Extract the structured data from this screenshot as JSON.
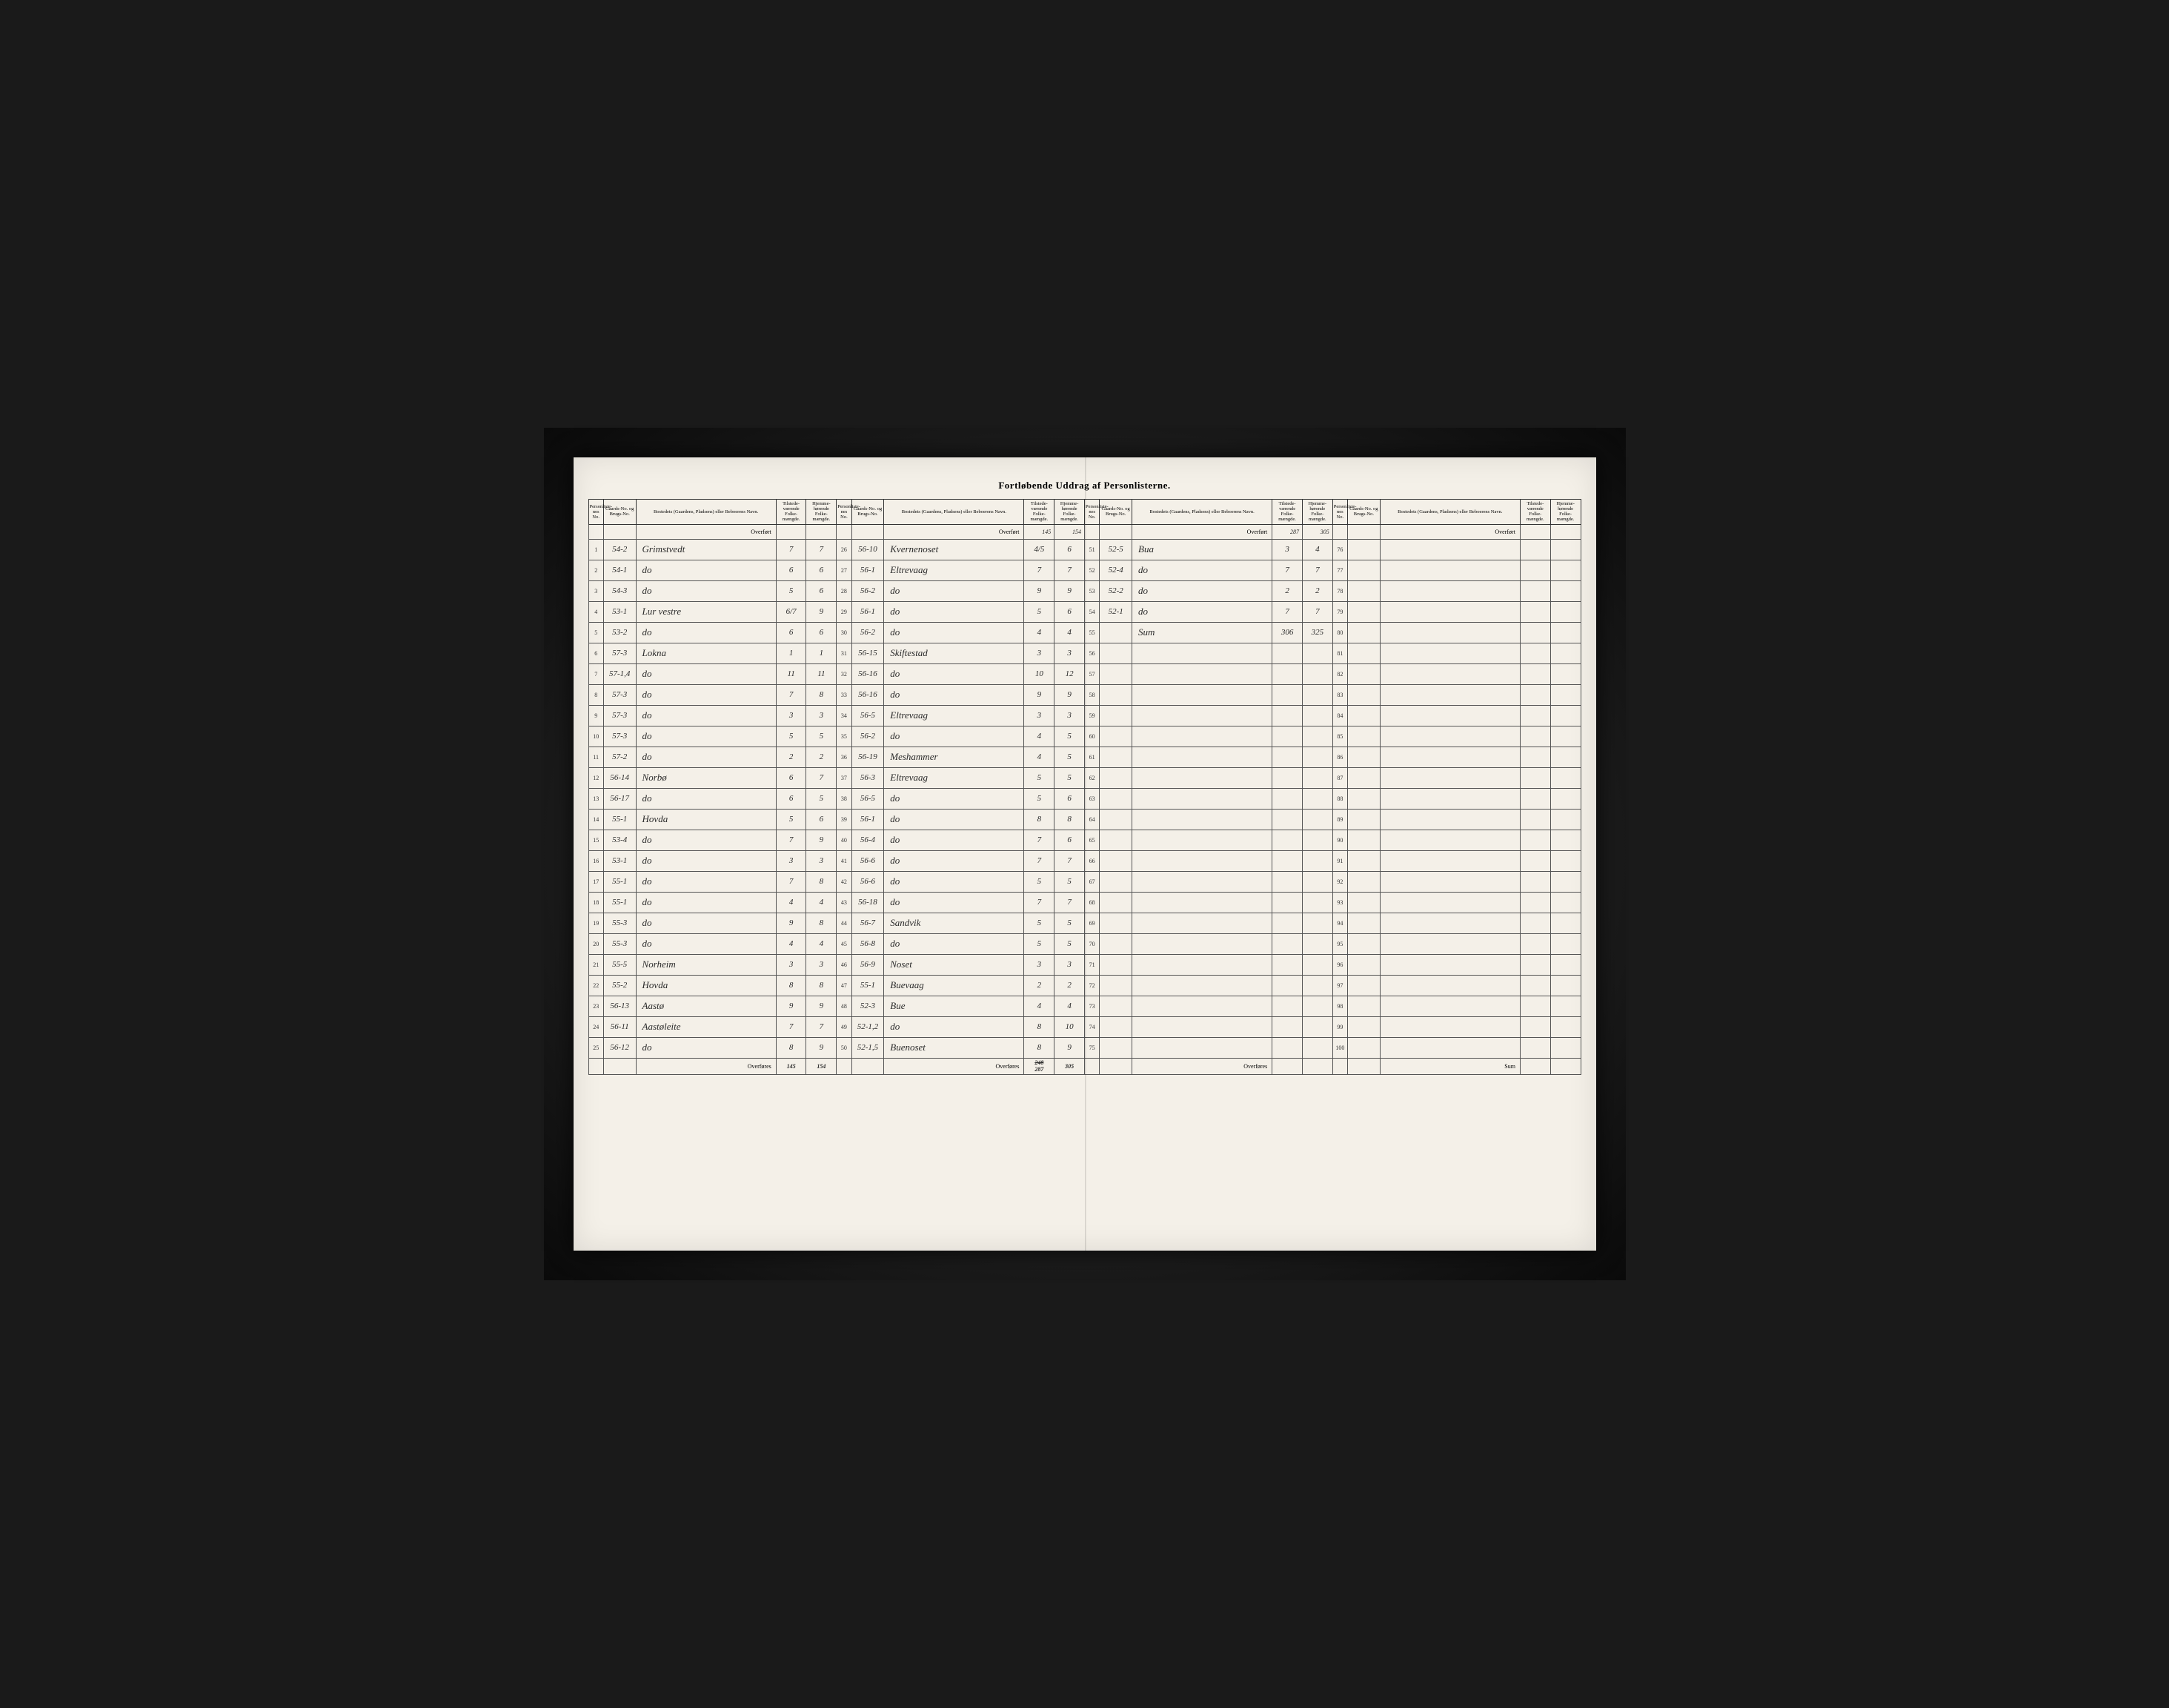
{
  "title": "Fortløbende Uddrag af Personlisterne.",
  "headers": {
    "idx": "Personliste-nes No.",
    "gno": "Gaards-No. og Brugs-No.",
    "name": "Bostedets (Gaardens, Pladsens) eller Beboerens Navn.",
    "present": "Tilstede-værende Folke-mængde.",
    "home": "Hjemme-hørende Folke-mængde."
  },
  "labels": {
    "overfort": "Overført",
    "overfores": "Overføres",
    "sum": "Sum"
  },
  "carry": {
    "g2_present": "145",
    "g2_home": "154",
    "g3_present": "287",
    "g3_home": "305"
  },
  "footer": {
    "g1_present": "145",
    "g1_home": "154",
    "g2_present": "248",
    "g2_home": "305",
    "g2_present_corr": "287"
  },
  "group1": [
    {
      "i": "1",
      "g": "54-2",
      "n": "Grimstvedt",
      "p": "7",
      "h": "7"
    },
    {
      "i": "2",
      "g": "54-1",
      "n": "do",
      "p": "6",
      "h": "6"
    },
    {
      "i": "3",
      "g": "54-3",
      "n": "do",
      "p": "5",
      "h": "6"
    },
    {
      "i": "4",
      "g": "53-1",
      "n": "Lur vestre",
      "p": "6/7",
      "h": "9"
    },
    {
      "i": "5",
      "g": "53-2",
      "n": "do",
      "p": "6",
      "h": "6"
    },
    {
      "i": "6",
      "g": "57-3",
      "n": "Lokna",
      "p": "1",
      "h": "1"
    },
    {
      "i": "7",
      "g": "57-1,4",
      "n": "do",
      "p": "11",
      "h": "11"
    },
    {
      "i": "8",
      "g": "57-3",
      "n": "do",
      "p": "7",
      "h": "8"
    },
    {
      "i": "9",
      "g": "57-3",
      "n": "do",
      "p": "3",
      "h": "3"
    },
    {
      "i": "10",
      "g": "57-3",
      "n": "do",
      "p": "5",
      "h": "5"
    },
    {
      "i": "11",
      "g": "57-2",
      "n": "do",
      "p": "2",
      "h": "2"
    },
    {
      "i": "12",
      "g": "56-14",
      "n": "Norbø",
      "p": "6",
      "h": "7"
    },
    {
      "i": "13",
      "g": "56-17",
      "n": "do",
      "p": "6",
      "h": "5"
    },
    {
      "i": "14",
      "g": "55-1",
      "n": "Hovda",
      "p": "5",
      "h": "6"
    },
    {
      "i": "15",
      "g": "53-4",
      "n": "do",
      "p": "7",
      "h": "9"
    },
    {
      "i": "16",
      "g": "53-1",
      "n": "do",
      "p": "3",
      "h": "3"
    },
    {
      "i": "17",
      "g": "55-1",
      "n": "do",
      "p": "7",
      "h": "8"
    },
    {
      "i": "18",
      "g": "55-1",
      "n": "do",
      "p": "4",
      "h": "4"
    },
    {
      "i": "19",
      "g": "55-3",
      "n": "do",
      "p": "9",
      "h": "8"
    },
    {
      "i": "20",
      "g": "55-3",
      "n": "do",
      "p": "4",
      "h": "4"
    },
    {
      "i": "21",
      "g": "55-5",
      "n": "Norheim",
      "p": "3",
      "h": "3"
    },
    {
      "i": "22",
      "g": "55-2",
      "n": "Hovda",
      "p": "8",
      "h": "8"
    },
    {
      "i": "23",
      "g": "56-13",
      "n": "Aastø",
      "p": "9",
      "h": "9"
    },
    {
      "i": "24",
      "g": "56-11",
      "n": "Aastøleite",
      "p": "7",
      "h": "7"
    },
    {
      "i": "25",
      "g": "56-12",
      "n": "do",
      "p": "8",
      "h": "9"
    }
  ],
  "group2": [
    {
      "i": "26",
      "g": "56-10",
      "n": "Kvernenoset",
      "p": "4/5",
      "h": "6"
    },
    {
      "i": "27",
      "g": "56-1",
      "n": "Eltrevaag",
      "p": "7",
      "h": "7"
    },
    {
      "i": "28",
      "g": "56-2",
      "n": "do",
      "p": "9",
      "h": "9"
    },
    {
      "i": "29",
      "g": "56-1",
      "n": "do",
      "p": "5",
      "h": "6"
    },
    {
      "i": "30",
      "g": "56-2",
      "n": "do",
      "p": "4",
      "h": "4"
    },
    {
      "i": "31",
      "g": "56-15",
      "n": "Skiftestad",
      "p": "3",
      "h": "3"
    },
    {
      "i": "32",
      "g": "56-16",
      "n": "do",
      "p": "10",
      "h": "12"
    },
    {
      "i": "33",
      "g": "56-16",
      "n": "do",
      "p": "9",
      "h": "9"
    },
    {
      "i": "34",
      "g": "56-5",
      "n": "Eltrevaag",
      "p": "3",
      "h": "3"
    },
    {
      "i": "35",
      "g": "56-2",
      "n": "do",
      "p": "4",
      "h": "5"
    },
    {
      "i": "36",
      "g": "56-19",
      "n": "Meshammer",
      "p": "4",
      "h": "5"
    },
    {
      "i": "37",
      "g": "56-3",
      "n": "Eltrevaag",
      "p": "5",
      "h": "5"
    },
    {
      "i": "38",
      "g": "56-5",
      "n": "do",
      "p": "5",
      "h": "6"
    },
    {
      "i": "39",
      "g": "56-1",
      "n": "do",
      "p": "8",
      "h": "8"
    },
    {
      "i": "40",
      "g": "56-4",
      "n": "do",
      "p": "7",
      "h": "6"
    },
    {
      "i": "41",
      "g": "56-6",
      "n": "do",
      "p": "7",
      "h": "7"
    },
    {
      "i": "42",
      "g": "56-6",
      "n": "do",
      "p": "5",
      "h": "5"
    },
    {
      "i": "43",
      "g": "56-18",
      "n": "do",
      "p": "7",
      "h": "7"
    },
    {
      "i": "44",
      "g": "56-7",
      "n": "Sandvik",
      "p": "5",
      "h": "5"
    },
    {
      "i": "45",
      "g": "56-8",
      "n": "do",
      "p": "5",
      "h": "5"
    },
    {
      "i": "46",
      "g": "56-9",
      "n": "Noset",
      "p": "3",
      "h": "3"
    },
    {
      "i": "47",
      "g": "55-1",
      "n": "Buevaag",
      "p": "2",
      "h": "2"
    },
    {
      "i": "48",
      "g": "52-3",
      "n": "Bue",
      "p": "4",
      "h": "4"
    },
    {
      "i": "49",
      "g": "52-1,2",
      "n": "do",
      "p": "8",
      "h": "10"
    },
    {
      "i": "50",
      "g": "52-1,5",
      "n": "Buenoset",
      "p": "8",
      "h": "9"
    }
  ],
  "group3": [
    {
      "i": "51",
      "g": "52-5",
      "n": "Bua",
      "p": "3",
      "h": "4"
    },
    {
      "i": "52",
      "g": "52-4",
      "n": "do",
      "p": "7",
      "h": "7"
    },
    {
      "i": "53",
      "g": "52-2",
      "n": "do",
      "p": "2",
      "h": "2"
    },
    {
      "i": "54",
      "g": "52-1",
      "n": "do",
      "p": "7",
      "h": "7"
    },
    {
      "i": "55",
      "g": "",
      "n": "Sum",
      "p": "306",
      "h": "325"
    },
    {
      "i": "56",
      "g": "",
      "n": "",
      "p": "",
      "h": ""
    },
    {
      "i": "57",
      "g": "",
      "n": "",
      "p": "",
      "h": ""
    },
    {
      "i": "58",
      "g": "",
      "n": "",
      "p": "",
      "h": ""
    },
    {
      "i": "59",
      "g": "",
      "n": "",
      "p": "",
      "h": ""
    },
    {
      "i": "60",
      "g": "",
      "n": "",
      "p": "",
      "h": ""
    },
    {
      "i": "61",
      "g": "",
      "n": "",
      "p": "",
      "h": ""
    },
    {
      "i": "62",
      "g": "",
      "n": "",
      "p": "",
      "h": ""
    },
    {
      "i": "63",
      "g": "",
      "n": "",
      "p": "",
      "h": ""
    },
    {
      "i": "64",
      "g": "",
      "n": "",
      "p": "",
      "h": ""
    },
    {
      "i": "65",
      "g": "",
      "n": "",
      "p": "",
      "h": ""
    },
    {
      "i": "66",
      "g": "",
      "n": "",
      "p": "",
      "h": ""
    },
    {
      "i": "67",
      "g": "",
      "n": "",
      "p": "",
      "h": ""
    },
    {
      "i": "68",
      "g": "",
      "n": "",
      "p": "",
      "h": ""
    },
    {
      "i": "69",
      "g": "",
      "n": "",
      "p": "",
      "h": ""
    },
    {
      "i": "70",
      "g": "",
      "n": "",
      "p": "",
      "h": ""
    },
    {
      "i": "71",
      "g": "",
      "n": "",
      "p": "",
      "h": ""
    },
    {
      "i": "72",
      "g": "",
      "n": "",
      "p": "",
      "h": ""
    },
    {
      "i": "73",
      "g": "",
      "n": "",
      "p": "",
      "h": ""
    },
    {
      "i": "74",
      "g": "",
      "n": "",
      "p": "",
      "h": ""
    },
    {
      "i": "75",
      "g": "",
      "n": "",
      "p": "",
      "h": ""
    }
  ],
  "group4": [
    {
      "i": "76",
      "g": "",
      "n": "",
      "p": "",
      "h": ""
    },
    {
      "i": "77",
      "g": "",
      "n": "",
      "p": "",
      "h": ""
    },
    {
      "i": "78",
      "g": "",
      "n": "",
      "p": "",
      "h": ""
    },
    {
      "i": "79",
      "g": "",
      "n": "",
      "p": "",
      "h": ""
    },
    {
      "i": "80",
      "g": "",
      "n": "",
      "p": "",
      "h": ""
    },
    {
      "i": "81",
      "g": "",
      "n": "",
      "p": "",
      "h": ""
    },
    {
      "i": "82",
      "g": "",
      "n": "",
      "p": "",
      "h": ""
    },
    {
      "i": "83",
      "g": "",
      "n": "",
      "p": "",
      "h": ""
    },
    {
      "i": "84",
      "g": "",
      "n": "",
      "p": "",
      "h": ""
    },
    {
      "i": "85",
      "g": "",
      "n": "",
      "p": "",
      "h": ""
    },
    {
      "i": "86",
      "g": "",
      "n": "",
      "p": "",
      "h": ""
    },
    {
      "i": "87",
      "g": "",
      "n": "",
      "p": "",
      "h": ""
    },
    {
      "i": "88",
      "g": "",
      "n": "",
      "p": "",
      "h": ""
    },
    {
      "i": "89",
      "g": "",
      "n": "",
      "p": "",
      "h": ""
    },
    {
      "i": "90",
      "g": "",
      "n": "",
      "p": "",
      "h": ""
    },
    {
      "i": "91",
      "g": "",
      "n": "",
      "p": "",
      "h": ""
    },
    {
      "i": "92",
      "g": "",
      "n": "",
      "p": "",
      "h": ""
    },
    {
      "i": "93",
      "g": "",
      "n": "",
      "p": "",
      "h": ""
    },
    {
      "i": "94",
      "g": "",
      "n": "",
      "p": "",
      "h": ""
    },
    {
      "i": "95",
      "g": "",
      "n": "",
      "p": "",
      "h": ""
    },
    {
      "i": "96",
      "g": "",
      "n": "",
      "p": "",
      "h": ""
    },
    {
      "i": "97",
      "g": "",
      "n": "",
      "p": "",
      "h": ""
    },
    {
      "i": "98",
      "g": "",
      "n": "",
      "p": "",
      "h": ""
    },
    {
      "i": "99",
      "g": "",
      "n": "",
      "p": "",
      "h": ""
    },
    {
      "i": "100",
      "g": "",
      "n": "",
      "p": "",
      "h": ""
    }
  ]
}
